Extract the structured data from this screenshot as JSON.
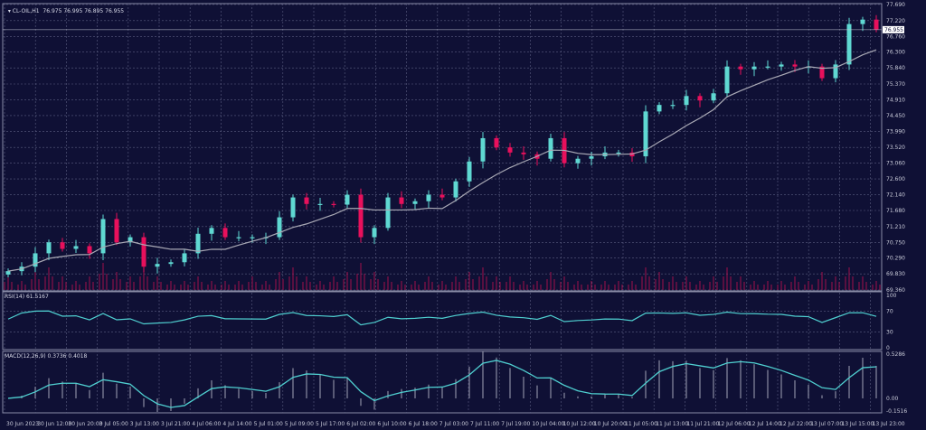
{
  "header": {
    "symbol": "CL-OIL,H1",
    "ohlc": "76.975 76.995 76.895 76.955",
    "rsi_label": "RSI(14) 61.5167",
    "macd_label": "MACD(12,26,9) 0.3736 0.4018"
  },
  "colors": {
    "background": "#0f1035",
    "grid": "#5a5d80",
    "bull": "#5fd8d2",
    "bear": "#e8105c",
    "ma": "#a9a9b5",
    "indicator": "#4fcfd0",
    "volume": "#a0104a"
  },
  "chart_data": [
    {
      "type": "candlestick",
      "title": "CL-OIL,H1",
      "ylim": [
        69.36,
        77.69
      ],
      "current_price": "76.955",
      "y_ticks": [
        "77.690",
        "77.220",
        "76.760",
        "76.300",
        "75.840",
        "75.370",
        "74.910",
        "74.450",
        "73.990",
        "73.520",
        "73.060",
        "72.600",
        "72.140",
        "71.680",
        "71.210",
        "70.750",
        "70.290",
        "69.830",
        "69.360"
      ],
      "x_ticks": [
        "30 Jun 2023",
        "30 Jun 12:00",
        "30 Jun 20:00",
        "3 Jul 05:00",
        "3 Jul 13:00",
        "3 Jul 21:00",
        "4 Jul 06:00",
        "4 Jul 14:00",
        "5 Jul 01:00",
        "5 Jul 09:00",
        "5 Jul 17:00",
        "6 Jul 02:00",
        "6 Jul 10:00",
        "6 Jul 18:00",
        "7 Jul 03:00",
        "7 Jul 11:00",
        "7 Jul 19:00",
        "10 Jul 04:00",
        "10 Jul 12:00",
        "10 Jul 20:00",
        "11 Jul 05:00",
        "11 Jul 13:00",
        "11 Jul 21:00",
        "12 Jul 06:00",
        "12 Jul 14:00",
        "12 Jul 22:00",
        "13 Jul 07:00",
        "13 Jul 15:00",
        "13 Jul 23:00"
      ],
      "closes": [
        69.91,
        70.04,
        70.43,
        70.75,
        70.56,
        70.64,
        70.43,
        71.43,
        70.75,
        70.9,
        70.04,
        70.12,
        70.17,
        70.43,
        71.0,
        71.17,
        70.9,
        70.9,
        70.9,
        70.9,
        71.48,
        72.06,
        71.87,
        71.87,
        71.85,
        72.14,
        70.9,
        71.17,
        72.06,
        71.87,
        71.95,
        72.14,
        72.06,
        72.53,
        73.11,
        73.79,
        73.52,
        73.37,
        73.32,
        73.19,
        73.79,
        73.06,
        73.19,
        73.26,
        73.37,
        73.37,
        73.26,
        74.57,
        74.76,
        74.76,
        75.02,
        74.89,
        75.1,
        75.88,
        75.8,
        75.88,
        75.88,
        75.94,
        75.88,
        75.88,
        75.54,
        75.94,
        77.12,
        77.25,
        76.96
      ],
      "volume": [
        3,
        2,
        4,
        5,
        3,
        2,
        3,
        6,
        4,
        3,
        5,
        3,
        2,
        2,
        3,
        2,
        2,
        2,
        3,
        2,
        4,
        5,
        3,
        2,
        3,
        4,
        6,
        4,
        3,
        2,
        2,
        3,
        2,
        3,
        4,
        5,
        3,
        3,
        2,
        2,
        4,
        3,
        2,
        2,
        2,
        2,
        2,
        5,
        4,
        3,
        3,
        2,
        3,
        5,
        3,
        2,
        2,
        2,
        3,
        2,
        4,
        3,
        5,
        3,
        2
      ]
    },
    {
      "type": "line",
      "title": "RSI(14) 61.5167",
      "ylim": [
        0,
        100
      ],
      "y_ticks": [
        "100",
        "70",
        "30",
        "0"
      ]
    },
    {
      "type": "bar+line",
      "title": "MACD(12,26,9) 0.3736 0.4018",
      "ylim": [
        -0.1516,
        0.5286
      ],
      "y_ticks": [
        "0.5286",
        "0.00",
        "-0.1516"
      ]
    }
  ]
}
